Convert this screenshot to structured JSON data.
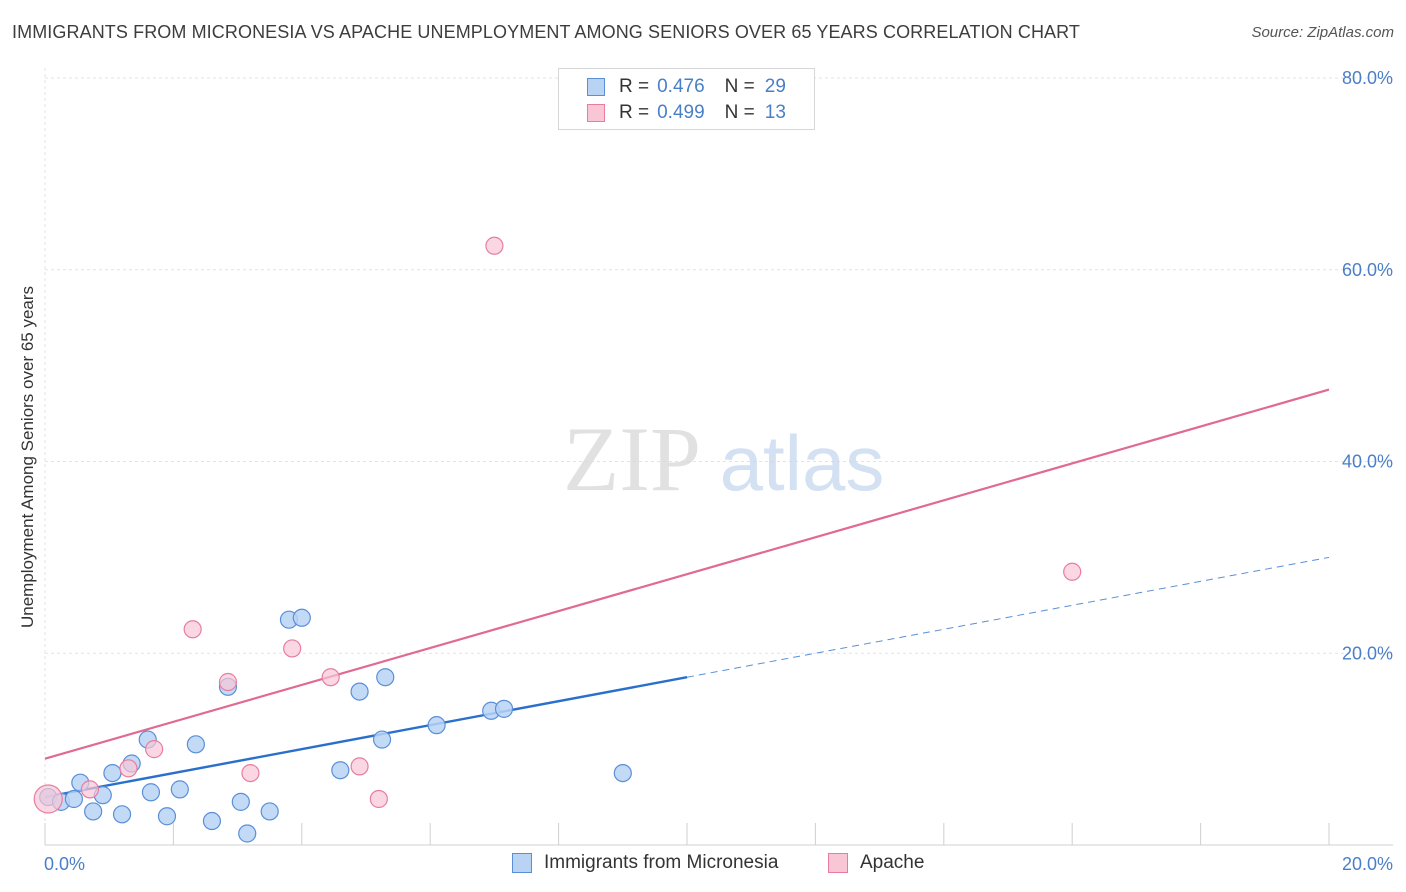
{
  "title": "IMMIGRANTS FROM MICRONESIA VS APACHE UNEMPLOYMENT AMONG SENIORS OVER 65 YEARS CORRELATION CHART",
  "source": "Source: ZipAtlas.com",
  "watermark": {
    "zip": "ZIP",
    "atlas": "atlas"
  },
  "colors": {
    "blue": "#5a8fd8",
    "blue_fill": "#b9d3f4",
    "blue_line": "#2a6fcc",
    "pink": "#e87da0",
    "pink_fill": "#f8c6d5",
    "pink_line": "#e06a93",
    "grid": "#e3e3e3",
    "tick_text": "#4a7fc8"
  },
  "legend": {
    "rows": [
      {
        "r_label": "R =",
        "r_value": "0.476",
        "n_label": "N =",
        "n_value": "29"
      },
      {
        "r_label": "R =",
        "r_value": "0.499",
        "n_label": "N =",
        "n_value": "13"
      }
    ]
  },
  "chart_data": {
    "type": "scatter",
    "xlabel": "",
    "ylabel": "Unemployment Among Seniors over 65 years",
    "xlim": [
      0,
      20
    ],
    "ylim": [
      0,
      80
    ],
    "x_tick_labels": [
      "0.0%",
      "20.0%"
    ],
    "y_tick_labels": [
      "20.0%",
      "40.0%",
      "60.0%",
      "80.0%"
    ],
    "y_ticks": [
      20,
      40,
      60,
      80
    ],
    "grid": true,
    "series": [
      {
        "name": "Immigrants from Micronesia",
        "points": [
          [
            0.05,
            5.0
          ],
          [
            0.25,
            4.5
          ],
          [
            0.45,
            4.8
          ],
          [
            0.55,
            6.5
          ],
          [
            0.75,
            3.5
          ],
          [
            0.9,
            5.2
          ],
          [
            1.05,
            7.5
          ],
          [
            1.2,
            3.2
          ],
          [
            1.35,
            8.5
          ],
          [
            1.6,
            11.0
          ],
          [
            1.65,
            5.5
          ],
          [
            1.9,
            3.0
          ],
          [
            2.1,
            5.8
          ],
          [
            2.35,
            10.5
          ],
          [
            2.6,
            2.5
          ],
          [
            2.85,
            16.5
          ],
          [
            3.05,
            4.5
          ],
          [
            3.15,
            1.2
          ],
          [
            3.5,
            3.5
          ],
          [
            3.8,
            23.5
          ],
          [
            4.0,
            23.7
          ],
          [
            4.6,
            7.8
          ],
          [
            4.9,
            16.0
          ],
          [
            5.25,
            11.0
          ],
          [
            5.3,
            17.5
          ],
          [
            6.1,
            12.5
          ],
          [
            6.95,
            14.0
          ],
          [
            7.15,
            14.2
          ],
          [
            9.0,
            7.5
          ]
        ],
        "trend": {
          "x0": 0.0,
          "y0": 5.0,
          "x1": 10.0,
          "y1": 17.5,
          "dashed_to_x": 20.0,
          "dashed_to_y": 30.0
        }
      },
      {
        "name": "Apache",
        "points": [
          [
            0.05,
            4.8
          ],
          [
            0.7,
            5.8
          ],
          [
            1.3,
            8.0
          ],
          [
            1.7,
            10.0
          ],
          [
            2.3,
            22.5
          ],
          [
            2.85,
            17.0
          ],
          [
            3.2,
            7.5
          ],
          [
            3.85,
            20.5
          ],
          [
            4.45,
            17.5
          ],
          [
            4.9,
            8.2
          ],
          [
            5.2,
            4.8
          ],
          [
            7.0,
            62.5
          ],
          [
            16.0,
            28.5
          ]
        ],
        "trend": {
          "x0": 0.0,
          "y0": 9.0,
          "x1": 20.0,
          "y1": 47.5
        }
      }
    ]
  }
}
